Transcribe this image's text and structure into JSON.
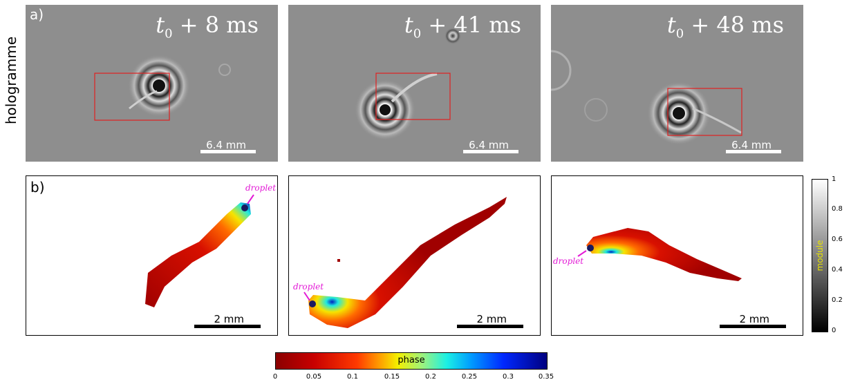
{
  "figure": {
    "row_a_label": "a)",
    "row_b_label": "b)",
    "row_a_ylabel": "hologramme",
    "holograms": [
      {
        "time_base": "t",
        "time_sub": "0",
        "time_rest": " + 8 ms",
        "scale_label": "6.4 mm"
      },
      {
        "time_base": "t",
        "time_sub": "0",
        "time_rest": " + 41 ms",
        "scale_label": "6.4 mm"
      },
      {
        "time_base": "t",
        "time_sub": "0",
        "time_rest": " + 48 ms",
        "scale_label": "6.4 mm"
      }
    ],
    "reconstructions": [
      {
        "droplet_label": "droplet",
        "scale_label": "2 mm"
      },
      {
        "droplet_label": "droplet",
        "scale_label": "2 mm"
      },
      {
        "droplet_label": "droplet",
        "scale_label": "2 mm"
      }
    ],
    "module_colorbar": {
      "label": "module",
      "ticks": [
        "1",
        "0.8",
        "0.6",
        "0.4",
        "0.2",
        "0"
      ]
    },
    "phase_colorbar": {
      "label": "phase",
      "ticks": [
        "0",
        "0.05",
        "0.1",
        "0.15",
        "0.2",
        "0.25",
        "0.3",
        "0.35"
      ]
    },
    "colors": {
      "roi_box": "#e02020",
      "droplet_annotation": "#e31ad6",
      "module_label": "#e9e400"
    }
  }
}
